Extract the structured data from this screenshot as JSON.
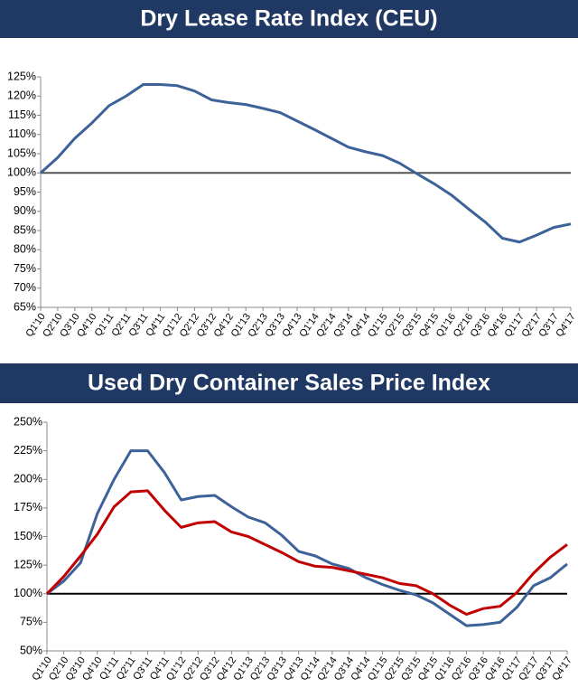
{
  "chart_data": [
    {
      "type": "line",
      "title": "Dry Lease Rate Index (CEU)",
      "categories": [
        "Q1'10",
        "Q2'10",
        "Q3'10",
        "Q4'10",
        "Q1'11",
        "Q2'11",
        "Q3'11",
        "Q4'11",
        "Q1'12",
        "Q2'12",
        "Q3'12",
        "Q4'12",
        "Q1'13",
        "Q2'13",
        "Q3'13",
        "Q4'13",
        "Q1'14",
        "Q2'14",
        "Q3'14",
        "Q4'14",
        "Q1'15",
        "Q2'15",
        "Q3'15",
        "Q4'15",
        "Q1'16",
        "Q2'16",
        "Q3'16",
        "Q4'16",
        "Q1'17",
        "Q2'17",
        "Q3'17",
        "Q4'17"
      ],
      "series": [
        {
          "color": "#3d6299",
          "values": [
            100,
            104,
            109,
            113,
            117.5,
            120,
            123,
            123,
            122.7,
            121.3,
            119,
            118.3,
            117.8,
            116.8,
            115.7,
            113.5,
            111.3,
            109,
            106.7,
            105.5,
            104.5,
            102.5,
            99.8,
            97.2,
            94.3,
            90.7,
            87.2,
            83,
            82,
            83.8,
            85.8,
            86.7
          ]
        }
      ],
      "reference_line": 100,
      "reference_color": "#555555",
      "ylim": [
        65,
        125
      ],
      "yticks": [
        {
          "value": 65,
          "label": "65%"
        },
        {
          "value": 70,
          "label": "70%"
        },
        {
          "value": 75,
          "label": "75%"
        },
        {
          "value": 80,
          "label": "80%"
        },
        {
          "value": 85,
          "label": "85%"
        },
        {
          "value": 90,
          "label": "90%"
        },
        {
          "value": 95,
          "label": "95%"
        },
        {
          "value": 100,
          "label": "100%"
        },
        {
          "value": 105,
          "label": "105%"
        },
        {
          "value": 110,
          "label": "110%"
        },
        {
          "value": 115,
          "label": "115%"
        },
        {
          "value": 120,
          "label": "120%"
        },
        {
          "value": 125,
          "label": "125%"
        }
      ]
    },
    {
      "type": "line",
      "title": "Used Dry Container Sales Price Index",
      "categories": [
        "Q1'10",
        "Q2'10",
        "Q3'10",
        "Q4'10",
        "Q1'11",
        "Q2'11",
        "Q3'11",
        "Q4'11",
        "Q1'12",
        "Q2'12",
        "Q3'12",
        "Q4'12",
        "Q1'13",
        "Q2'13",
        "Q3'13",
        "Q4'13",
        "Q1'14",
        "Q2'14",
        "Q3'14",
        "Q4'14",
        "Q1'15",
        "Q2'15",
        "Q3'15",
        "Q4'15",
        "Q1'16",
        "Q2'16",
        "Q3'16",
        "Q4'16",
        "Q1'17",
        "Q2'17",
        "Q3'17",
        "Q4'17"
      ],
      "series": [
        {
          "color": "#3d6299",
          "values": [
            100,
            111,
            127,
            170,
            200,
            225,
            225,
            206,
            182,
            185,
            186,
            176,
            167,
            162,
            151,
            137,
            133,
            126,
            122,
            114,
            108,
            103,
            99,
            92,
            82,
            72,
            73,
            75,
            88,
            107,
            114,
            126
          ]
        },
        {
          "color": "#c00000",
          "values": [
            100,
            115,
            133,
            152,
            176,
            189,
            190,
            173,
            158,
            162,
            163,
            154,
            150,
            143,
            136,
            128,
            124,
            123,
            120,
            117,
            114,
            109,
            107,
            100,
            90,
            82,
            87,
            89,
            101,
            118,
            132,
            143
          ]
        }
      ],
      "reference_line": 100,
      "reference_color": "#000000",
      "ylim": [
        50,
        250
      ],
      "yticks": [
        {
          "value": 50,
          "label": "50%"
        },
        {
          "value": 75,
          "label": "75%"
        },
        {
          "value": 100,
          "label": "100%"
        },
        {
          "value": 125,
          "label": "125%"
        },
        {
          "value": 150,
          "label": "150%"
        },
        {
          "value": 175,
          "label": "175%"
        },
        {
          "value": 200,
          "label": "200%"
        },
        {
          "value": 225,
          "label": "225%"
        },
        {
          "value": 250,
          "label": "250%"
        }
      ]
    }
  ]
}
